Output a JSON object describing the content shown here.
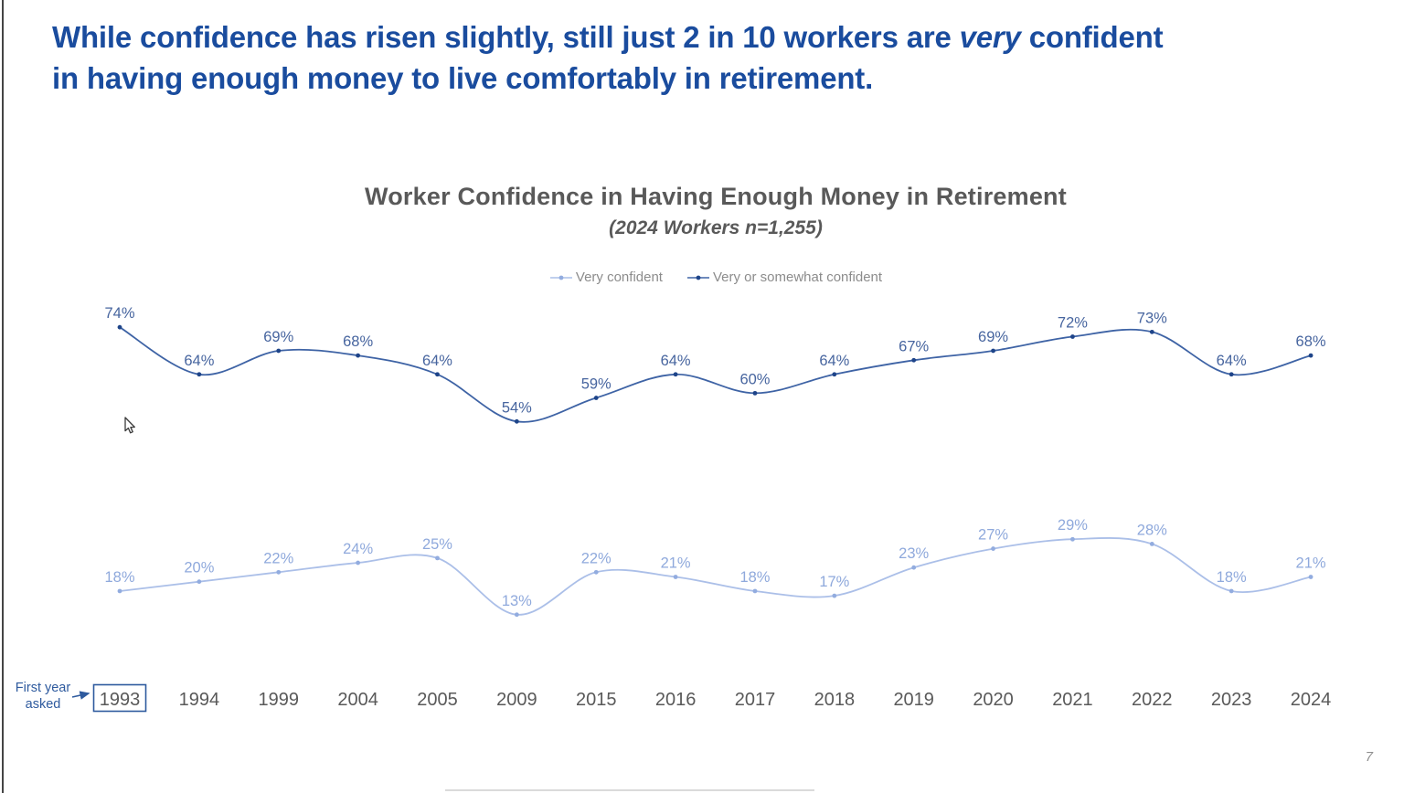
{
  "slide": {
    "headline": {
      "line1_before": "While confidence has risen slightly, still just 2 in 10 workers are ",
      "line1_emphasis": "very",
      "line1_after": " confident",
      "line2": "in having enough money to live comfortably in retirement."
    },
    "page_number": "7"
  },
  "chart": {
    "title": "Worker Confidence in Having Enough Money in Retirement",
    "subtitle": "(2024 Workers n=1,255)",
    "annotation": {
      "line1": "First year",
      "line2": "asked"
    }
  },
  "chart_data": {
    "type": "line",
    "title": "Worker Confidence in Having Enough Money in Retirement",
    "subtitle": "(2024 Workers n=1,255)",
    "categories": [
      "1993",
      "1994",
      "1999",
      "2004",
      "2005",
      "2009",
      "2015",
      "2016",
      "2017",
      "2018",
      "2019",
      "2020",
      "2021",
      "2022",
      "2023",
      "2024"
    ],
    "series": [
      {
        "name": "Very confident",
        "values": [
          18,
          20,
          22,
          24,
          25,
          13,
          22,
          21,
          18,
          17,
          23,
          27,
          29,
          28,
          18,
          21
        ],
        "line_color": "#ABBFE8",
        "marker_color": "#92ACDF",
        "label_color": "#8FA9DC"
      },
      {
        "name": "Very or somewhat confident",
        "values": [
          74,
          64,
          69,
          68,
          64,
          54,
          59,
          64,
          60,
          64,
          67,
          69,
          72,
          73,
          64,
          68
        ],
        "line_color": "#3E63A5",
        "marker_color": "#1E4489",
        "label_color": "#47659F"
      }
    ],
    "value_suffix": "%",
    "boxed_category": "1993",
    "boxed_category_note": "First year asked",
    "legend_position": "top-center",
    "ylim": [
      0,
      100
    ],
    "grid": false,
    "y_axis_visible": false
  },
  "colors": {
    "headline": "#1A4C9E",
    "chart_title": "#595959",
    "legend_text": "#8C8C8C",
    "axis_text": "#595959",
    "annotation": "#2E5A9E",
    "box_border": "#2E5A9E",
    "page_number": "#8E8E8E"
  }
}
